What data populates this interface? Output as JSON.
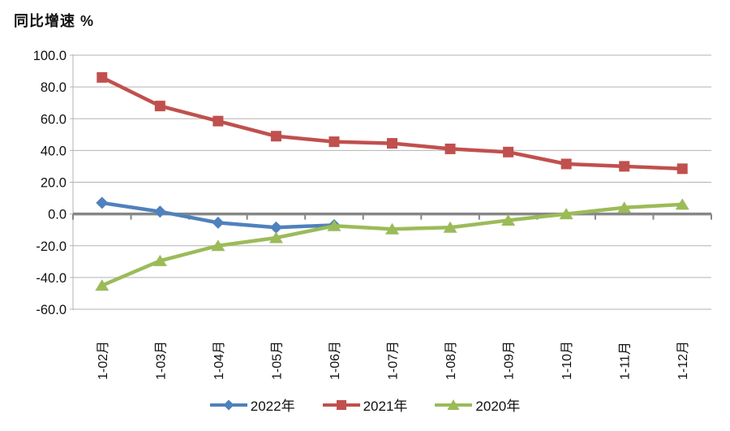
{
  "title": "同比增速 %",
  "chart_data": {
    "type": "line",
    "title": "同比增速 %",
    "categories": [
      "1-02月",
      "1-03月",
      "1-04月",
      "1-05月",
      "1-06月",
      "1-07月",
      "1-08月",
      "1-09月",
      "1-10月",
      "1-11月",
      "1-12月"
    ],
    "series": [
      {
        "name": "2022年",
        "color": "#4F81BD",
        "marker": "diamond",
        "values": [
          7,
          1.5,
          -5.5,
          -8.5,
          -7,
          null,
          null,
          null,
          null,
          null,
          null
        ]
      },
      {
        "name": "2021年",
        "color": "#C0504D",
        "marker": "square",
        "values": [
          86,
          68,
          58.5,
          49,
          45.5,
          44.5,
          41,
          39,
          31.5,
          30,
          28.5
        ]
      },
      {
        "name": "2020年",
        "color": "#9BBB59",
        "marker": "triangle",
        "values": [
          -45,
          -29.5,
          -20,
          -15,
          -7.5,
          -9.5,
          -8.5,
          -4,
          0,
          4,
          6
        ]
      }
    ],
    "xlabel": "",
    "ylabel": "同比增速 %",
    "ylim": [
      -60,
      100
    ],
    "yticks": [
      100,
      80,
      60,
      40,
      20,
      0,
      -20,
      -40,
      -60
    ],
    "ytick_labels": [
      "100.0",
      "80.0",
      "60.0",
      "40.0",
      "20.0",
      "0.0",
      "-20.0",
      "-40.0",
      "-60.0"
    ],
    "grid": true,
    "zero_line_emphasized": true,
    "legend_position": "bottom",
    "colors": {
      "gridline": "#B3B3B3",
      "zero_line": "#878787",
      "axis": "#B3B3B3",
      "text": "#111111",
      "background": "#FFFFFF"
    }
  }
}
